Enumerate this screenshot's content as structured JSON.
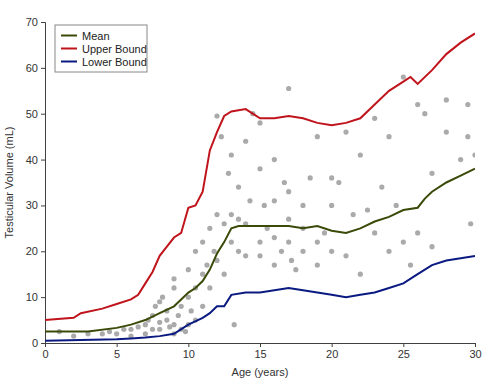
{
  "chart_data": {
    "type": "line",
    "x_label": "Age (years)",
    "y_label": "Testicular Volume (mL)",
    "xlim": [
      0,
      30
    ],
    "ylim": [
      0,
      70
    ],
    "xticks": [
      0,
      5,
      10,
      15,
      20,
      25,
      30
    ],
    "yticks": [
      0,
      10,
      20,
      30,
      40,
      50,
      60,
      70
    ],
    "grid": false,
    "legend": "upper left",
    "series": [
      {
        "name": "Mean",
        "type": "line",
        "color": "#3a4a08",
        "line_style": "solid",
        "x": [
          0,
          3,
          5,
          6,
          7,
          8,
          9,
          9.5,
          10,
          10.5,
          11,
          11.5,
          12,
          12.5,
          13,
          13.5,
          14,
          15,
          16,
          17,
          18,
          19,
          20,
          21,
          22,
          23,
          24,
          25,
          26,
          26.5,
          27,
          28,
          29,
          30
        ],
        "values": [
          2.5,
          2.5,
          3.3,
          4,
          5,
          6.5,
          8,
          9.5,
          11,
          12,
          13.5,
          16,
          19.5,
          22,
          25,
          25.5,
          25.5,
          25.5,
          25.5,
          25.5,
          25,
          25.5,
          24.5,
          24,
          25,
          26.5,
          27.5,
          29,
          29.5,
          31.5,
          33,
          35,
          36.5,
          38
        ]
      },
      {
        "name": "Upper Bound",
        "type": "line",
        "color": "#c0141c",
        "line_style": "solid",
        "x": [
          0,
          2,
          2.5,
          4,
          5,
          6,
          6.5,
          7,
          7.5,
          8,
          8.5,
          9,
          9.5,
          10,
          10.5,
          11,
          11.5,
          12,
          12.5,
          13,
          14,
          15,
          16,
          17,
          18,
          19,
          20,
          21,
          22,
          23,
          24,
          25,
          25.5,
          26,
          27,
          28,
          29,
          30
        ],
        "values": [
          5,
          5.5,
          6.5,
          7.5,
          8.5,
          9.5,
          10.5,
          13,
          15.5,
          19,
          21,
          23,
          24,
          29.5,
          30,
          33,
          42,
          46,
          49.5,
          50.5,
          51,
          49,
          49,
          49.5,
          49,
          48,
          47.5,
          48,
          49,
          52,
          55,
          57,
          58,
          56.5,
          59.5,
          63,
          65.5,
          67.5
        ]
      },
      {
        "name": "Lower Bound",
        "type": "line",
        "color": "#0a1a80",
        "line_style": "solid",
        "x": [
          0,
          5,
          6,
          7,
          8,
          9,
          10,
          11,
          11.5,
          12,
          12.5,
          13,
          14,
          15,
          16,
          17,
          18,
          19,
          20,
          21,
          22,
          23,
          24,
          25,
          26,
          27,
          28,
          29,
          30
        ],
        "values": [
          0.5,
          0.8,
          1,
          1.2,
          1.5,
          2,
          4,
          5.5,
          6.5,
          8,
          8,
          10.5,
          11,
          11,
          11.5,
          12,
          11.5,
          11,
          10.5,
          10,
          10.5,
          11,
          12,
          13,
          15,
          17,
          18,
          18.5,
          19
        ]
      },
      {
        "type": "scatter",
        "color": "#aaaaaa",
        "marker": "circle",
        "x": [
          1,
          2,
          3,
          4,
          4.5,
          5,
          5.5,
          6,
          6,
          6.5,
          7,
          7,
          7.2,
          7.5,
          7.5,
          7.7,
          8,
          8,
          8,
          8.2,
          8.5,
          8.5,
          8.7,
          9,
          9,
          9,
          9,
          9.3,
          9.5,
          9.5,
          9.8,
          10,
          10,
          10,
          10.2,
          10.5,
          10.5,
          10.5,
          11,
          11,
          11,
          11.3,
          11.5,
          11.5,
          11.8,
          12,
          12,
          12,
          12.3,
          12.5,
          12.5,
          12.8,
          13,
          13,
          13,
          13.2,
          13.5,
          13.5,
          13.5,
          14,
          14,
          14,
          14.3,
          14.5,
          15,
          15,
          15,
          15,
          15.3,
          15.5,
          16,
          16,
          16,
          16,
          16.5,
          16.7,
          17,
          17,
          17,
          17,
          17.2,
          17.5,
          18,
          18,
          18,
          18.5,
          19,
          19,
          19,
          19.5,
          20,
          20,
          20,
          20.5,
          21,
          21,
          21.5,
          22,
          22,
          22.5,
          23,
          23,
          23.5,
          24,
          24,
          24.5,
          25,
          25,
          25.5,
          26,
          26,
          26.5,
          27,
          27,
          28,
          28,
          29,
          29.5,
          29.5,
          30,
          29.7
        ],
        "values": [
          2.5,
          1.5,
          2,
          2,
          2.5,
          2,
          3,
          1.5,
          3,
          3.5,
          2,
          4,
          5,
          3,
          6,
          8,
          3,
          4.5,
          9,
          10,
          5,
          7,
          3.5,
          2,
          4,
          12,
          14,
          6,
          3,
          8,
          2.5,
          4,
          10,
          16,
          7,
          5,
          12,
          20,
          8,
          15,
          22,
          17,
          12,
          25,
          20,
          49.5,
          18,
          28,
          45,
          15,
          26,
          37,
          22,
          28,
          41,
          4,
          20,
          27,
          34,
          19,
          44,
          26,
          31,
          50,
          19,
          22,
          38,
          48,
          30,
          25,
          17,
          31,
          40,
          23,
          20,
          35,
          55.5,
          22,
          27,
          33,
          18,
          16,
          20,
          25,
          30,
          36,
          17,
          22,
          45,
          24,
          36,
          30,
          20,
          35,
          46,
          19,
          28,
          15,
          41,
          29,
          24,
          49,
          34,
          20,
          45,
          30,
          22,
          58,
          17,
          52,
          24,
          50,
          37,
          21,
          46,
          53,
          40,
          45,
          52,
          41,
          26
        ]
      }
    ]
  }
}
